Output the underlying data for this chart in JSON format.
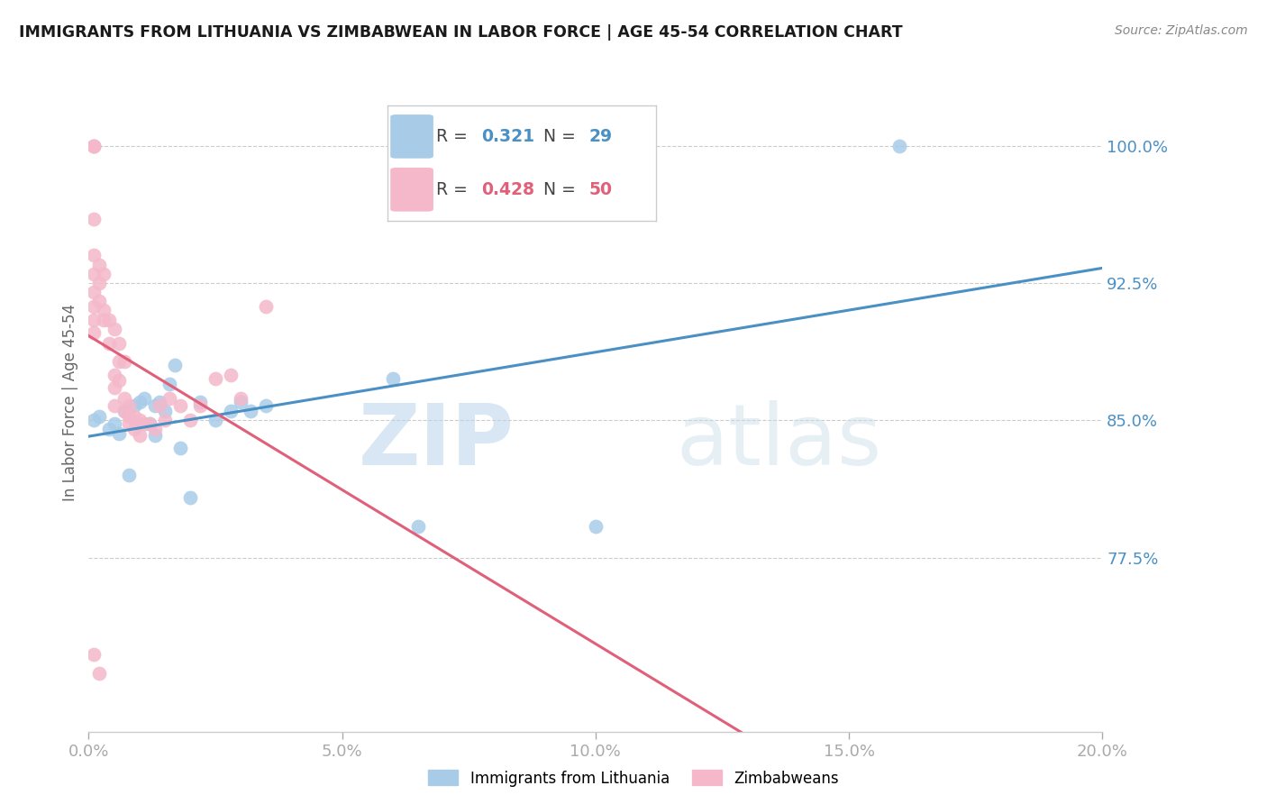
{
  "title": "IMMIGRANTS FROM LITHUANIA VS ZIMBABWEAN IN LABOR FORCE | AGE 45-54 CORRELATION CHART",
  "source": "Source: ZipAtlas.com",
  "ylabel": "In Labor Force | Age 45-54",
  "xlim": [
    0.0,
    0.2
  ],
  "ylim": [
    0.68,
    1.04
  ],
  "yticks": [
    0.775,
    0.85,
    0.925,
    1.0
  ],
  "ytick_labels": [
    "77.5%",
    "85.0%",
    "92.5%",
    "100.0%"
  ],
  "xticks": [
    0.0,
    0.05,
    0.1,
    0.15,
    0.2
  ],
  "xtick_labels": [
    "0.0%",
    "5.0%",
    "10.0%",
    "15.0%",
    "20.0%"
  ],
  "legend_labels": [
    "Immigrants from Lithuania",
    "Zimbabweans"
  ],
  "blue_color": "#a8cce8",
  "pink_color": "#f4b8ca",
  "blue_line_color": "#4a90c4",
  "pink_line_color": "#e0607a",
  "R_blue": 0.321,
  "N_blue": 29,
  "R_pink": 0.428,
  "N_pink": 50,
  "watermark_zip": "ZIP",
  "watermark_atlas": "atlas",
  "blue_points_x": [
    0.001,
    0.002,
    0.004,
    0.005,
    0.006,
    0.007,
    0.008,
    0.009,
    0.01,
    0.011,
    0.012,
    0.013,
    0.013,
    0.014,
    0.015,
    0.016,
    0.017,
    0.018,
    0.02,
    0.022,
    0.025,
    0.028,
    0.03,
    0.032,
    0.035,
    0.06,
    0.065,
    0.1,
    0.16
  ],
  "blue_points_y": [
    0.85,
    0.852,
    0.845,
    0.848,
    0.843,
    0.855,
    0.82,
    0.858,
    0.86,
    0.862,
    0.848,
    0.858,
    0.842,
    0.86,
    0.855,
    0.87,
    0.88,
    0.835,
    0.808,
    0.86,
    0.85,
    0.855,
    0.86,
    0.855,
    0.858,
    0.873,
    0.792,
    0.792,
    1.0
  ],
  "pink_points_x": [
    0.001,
    0.001,
    0.001,
    0.001,
    0.001,
    0.001,
    0.001,
    0.001,
    0.001,
    0.001,
    0.002,
    0.002,
    0.002,
    0.003,
    0.003,
    0.003,
    0.004,
    0.004,
    0.005,
    0.005,
    0.005,
    0.005,
    0.006,
    0.006,
    0.006,
    0.007,
    0.007,
    0.007,
    0.008,
    0.008,
    0.008,
    0.009,
    0.009,
    0.01,
    0.01,
    0.011,
    0.012,
    0.013,
    0.014,
    0.015,
    0.016,
    0.018,
    0.02,
    0.022,
    0.025,
    0.028,
    0.03,
    0.035,
    0.001,
    0.002
  ],
  "pink_points_y": [
    1.0,
    1.0,
    1.0,
    0.96,
    0.94,
    0.93,
    0.92,
    0.912,
    0.905,
    0.898,
    0.935,
    0.925,
    0.915,
    0.93,
    0.91,
    0.905,
    0.905,
    0.892,
    0.9,
    0.875,
    0.868,
    0.858,
    0.892,
    0.882,
    0.872,
    0.882,
    0.862,
    0.855,
    0.858,
    0.852,
    0.848,
    0.852,
    0.845,
    0.85,
    0.842,
    0.848,
    0.848,
    0.845,
    0.858,
    0.85,
    0.862,
    0.858,
    0.85,
    0.858,
    0.873,
    0.875,
    0.862,
    0.912,
    0.722,
    0.712
  ]
}
